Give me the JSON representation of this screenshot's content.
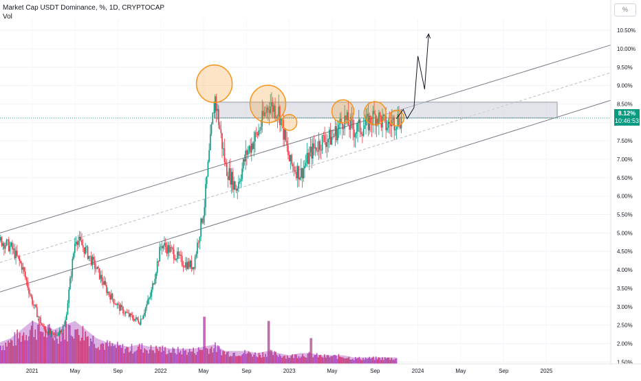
{
  "header": {
    "title": "Market Cap USDT Dominance, %, 1D, CRYPTOCAP",
    "subtitle": "Vol",
    "unit_button": "%"
  },
  "price_tag": {
    "value": "8.12%",
    "countdown": "10:46:53",
    "color": "#089981"
  },
  "colors": {
    "up": "#089981",
    "down": "#f23645",
    "volume": "#9c27b0",
    "volume_up": "#c2185b",
    "channel": "#787b86",
    "highlight": "#f7931a",
    "zone": "#b2b5be"
  },
  "chart_data": {
    "type": "candlestick",
    "symbol": "USDT Dominance",
    "interval": "1D",
    "y_ticks": [
      "10.50%",
      "10.00%",
      "9.50%",
      "9.00%",
      "8.50%",
      "8.00%",
      "7.50%",
      "7.00%",
      "6.50%",
      "6.00%",
      "5.50%",
      "5.00%",
      "4.50%",
      "4.00%",
      "3.50%",
      "3.00%",
      "2.50%",
      "2.00%",
      "1.50%"
    ],
    "x_ticks": [
      {
        "label": "2021",
        "date": "2021-01"
      },
      {
        "label": "May",
        "date": "2021-05"
      },
      {
        "label": "Sep",
        "date": "2021-09"
      },
      {
        "label": "2022",
        "date": "2022-01"
      },
      {
        "label": "May",
        "date": "2022-05"
      },
      {
        "label": "Sep",
        "date": "2022-09"
      },
      {
        "label": "2023",
        "date": "2023-01"
      },
      {
        "label": "May",
        "date": "2023-05"
      },
      {
        "label": "Sep",
        "date": "2023-09"
      },
      {
        "label": "2024",
        "date": "2024-01"
      },
      {
        "label": "May",
        "date": "2024-05"
      },
      {
        "label": "Sep",
        "date": "2024-09"
      },
      {
        "label": "2025",
        "date": "2025-01"
      }
    ],
    "x_range": [
      "2020-10",
      "2025-07"
    ],
    "y_range": [
      1.45,
      10.8
    ],
    "current_price": 8.12,
    "price_series": [
      [
        "2020-10",
        4.8
      ],
      [
        "2020-11",
        4.6
      ],
      [
        "2020-12",
        4.1
      ],
      [
        "2021-01",
        3.1
      ],
      [
        "2021-02",
        2.4
      ],
      [
        "2021-03",
        2.2
      ],
      [
        "2021-04",
        2.5
      ],
      [
        "2021-05",
        4.9
      ],
      [
        "2021-06",
        4.5
      ],
      [
        "2021-07",
        4.0
      ],
      [
        "2021-08",
        3.4
      ],
      [
        "2021-09",
        3.0
      ],
      [
        "2021-10",
        2.75
      ],
      [
        "2021-11",
        2.6
      ],
      [
        "2021-12",
        3.3
      ],
      [
        "2022-01",
        4.7
      ],
      [
        "2022-02",
        4.5
      ],
      [
        "2022-03",
        4.2
      ],
      [
        "2022-04",
        4.1
      ],
      [
        "2022-05",
        5.7
      ],
      [
        "2022-06",
        8.7
      ],
      [
        "2022-07",
        6.8
      ],
      [
        "2022-08",
        6.2
      ],
      [
        "2022-09",
        7.2
      ],
      [
        "2022-10",
        7.7
      ],
      [
        "2022-11",
        8.5
      ],
      [
        "2022-12",
        8.3
      ],
      [
        "2023-01",
        6.9
      ],
      [
        "2023-02",
        6.6
      ],
      [
        "2023-03",
        7.2
      ],
      [
        "2023-04",
        7.5
      ],
      [
        "2023-05",
        7.6
      ],
      [
        "2023-06",
        8.1
      ],
      [
        "2023-07",
        7.8
      ],
      [
        "2023-08",
        7.9
      ],
      [
        "2023-09",
        8.2
      ],
      [
        "2023-10",
        7.9
      ],
      [
        "2023-11",
        8.1
      ]
    ],
    "volume_series": [
      [
        "2020-10",
        0.5
      ],
      [
        "2020-11",
        0.6
      ],
      [
        "2020-12",
        0.8
      ],
      [
        "2021-01",
        1.0
      ],
      [
        "2021-02",
        0.9
      ],
      [
        "2021-03",
        0.8
      ],
      [
        "2021-04",
        0.9
      ],
      [
        "2021-05",
        1.0
      ],
      [
        "2021-06",
        0.8
      ],
      [
        "2021-07",
        0.6
      ],
      [
        "2021-08",
        0.5
      ],
      [
        "2021-09",
        0.45
      ],
      [
        "2021-10",
        0.4
      ],
      [
        "2021-11",
        0.45
      ],
      [
        "2021-12",
        0.4
      ],
      [
        "2022-01",
        0.4
      ],
      [
        "2022-02",
        0.35
      ],
      [
        "2022-03",
        0.35
      ],
      [
        "2022-04",
        0.35
      ],
      [
        "2022-05",
        0.4
      ],
      [
        "2022-06",
        0.45
      ],
      [
        "2022-07",
        0.3
      ],
      [
        "2022-08",
        0.3
      ],
      [
        "2022-09",
        0.3
      ],
      [
        "2022-10",
        0.25
      ],
      [
        "2022-11",
        0.3
      ],
      [
        "2022-12",
        0.25
      ],
      [
        "2023-01",
        0.2
      ],
      [
        "2023-02",
        0.25
      ],
      [
        "2023-03",
        0.25
      ],
      [
        "2023-04",
        0.2
      ],
      [
        "2023-05",
        0.2
      ],
      [
        "2023-06",
        0.2
      ],
      [
        "2023-07",
        0.15
      ],
      [
        "2023-08",
        0.15
      ],
      [
        "2023-09",
        0.15
      ],
      [
        "2023-10",
        0.15
      ],
      [
        "2023-11",
        0.15
      ]
    ],
    "volume_spikes": [
      [
        "2021-05",
        0.8
      ],
      [
        "2022-05",
        1.1
      ],
      [
        "2022-11",
        1.0
      ],
      [
        "2023-03",
        0.6
      ]
    ],
    "resistance_zone": {
      "from": "2022-06",
      "to": "2025-02",
      "low": 8.12,
      "high": 8.55
    },
    "channel_upper": [
      [
        "2020-10",
        5.0
      ],
      [
        "2025-07",
        10.1
      ]
    ],
    "channel_lower": [
      [
        "2020-10",
        3.4
      ],
      [
        "2025-07",
        8.6
      ]
    ],
    "channel_mid": [
      [
        "2020-10",
        4.2
      ],
      [
        "2025-07",
        9.35
      ]
    ],
    "highlight_circles": [
      {
        "date": "2022-06",
        "price": 9.05,
        "size": "large"
      },
      {
        "date": "2022-11",
        "price": 8.5,
        "size": "large"
      },
      {
        "date": "2023-01",
        "price": 8.0,
        "size": "small"
      },
      {
        "date": "2023-06",
        "price": 8.3,
        "size": "medium"
      },
      {
        "date": "2023-09",
        "price": 8.25,
        "size": "medium"
      },
      {
        "date": "2023-11",
        "price": 8.12,
        "size": "small"
      }
    ],
    "projection_path": [
      [
        "2023-11",
        8.1
      ],
      [
        "2023-11-20",
        8.35
      ],
      [
        "2023-12",
        8.1
      ],
      [
        "2023-12-20",
        8.4
      ],
      [
        "2024-01",
        9.8
      ],
      [
        "2024-01-20",
        8.9
      ],
      [
        "2024-02",
        10.4
      ]
    ]
  }
}
